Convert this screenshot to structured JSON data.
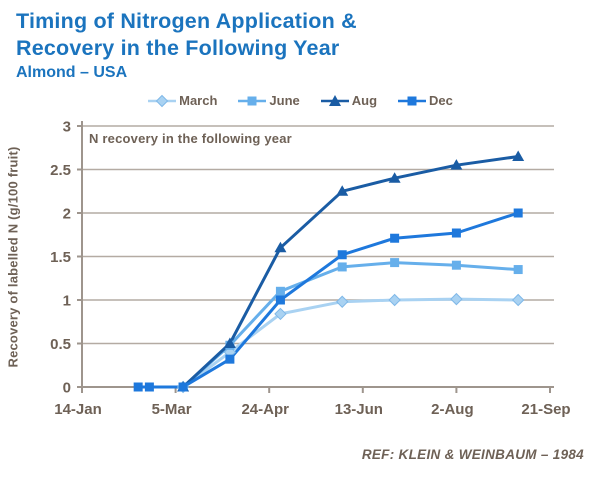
{
  "header": {
    "title_line1": "Timing of Nitrogen Application &",
    "title_line2": "Recovery in the Following Year",
    "subtitle": "Almond – USA"
  },
  "annotation": "N recovery in the following year",
  "reference": "REF:  KLEIN & WEINBAUM – 1984",
  "colors": {
    "title_blue": "#1B74BE",
    "text_brown": "#6E6156",
    "grid": "#B4ABA3",
    "axis": "#9E958D",
    "background": "#FFFFFF"
  },
  "chart_data": {
    "type": "line",
    "title": "Timing of Nitrogen Application & Recovery in the Following Year",
    "xlabel": "",
    "ylabel": "Recovery of labelled N (g/100 fruit)",
    "x_tick_labels": [
      "14-Jan",
      "5-Mar",
      "24-Apr",
      "13-Jun",
      "2-Aug",
      "21-Sep"
    ],
    "x_tick_days": [
      0,
      50,
      100,
      150,
      200,
      250
    ],
    "xlim_days": [
      0,
      250
    ],
    "ylim": [
      0,
      3
    ],
    "y_ticks": [
      0,
      0.5,
      1,
      1.5,
      2,
      2.5,
      3
    ],
    "grid": true,
    "legend_position": "top",
    "series": [
      {
        "name": "March",
        "color": "#A9D2F2",
        "marker": "diamond",
        "points": [
          [
            54,
            0
          ],
          [
            79,
            0.4
          ],
          [
            106,
            0.84
          ],
          [
            139,
            0.98
          ],
          [
            167,
            1.0
          ],
          [
            200,
            1.01
          ],
          [
            233,
            1.0
          ]
        ]
      },
      {
        "name": "June",
        "color": "#66AFEB",
        "marker": "square",
        "points": [
          [
            54,
            0
          ],
          [
            79,
            0.48
          ],
          [
            106,
            1.1
          ],
          [
            139,
            1.38
          ],
          [
            167,
            1.43
          ],
          [
            200,
            1.4
          ],
          [
            233,
            1.35
          ]
        ]
      },
      {
        "name": "Aug",
        "color": "#1A5CA4",
        "marker": "triangle",
        "points": [
          [
            54,
            0
          ],
          [
            79,
            0.5
          ],
          [
            106,
            1.6
          ],
          [
            139,
            2.25
          ],
          [
            167,
            2.4
          ],
          [
            200,
            2.55
          ],
          [
            233,
            2.65
          ]
        ]
      },
      {
        "name": "Dec",
        "color": "#1E78DC",
        "marker": "square",
        "points": [
          [
            30,
            0
          ],
          [
            36,
            0
          ],
          [
            54,
            0
          ],
          [
            79,
            0.32
          ],
          [
            106,
            1.0
          ],
          [
            139,
            1.52
          ],
          [
            167,
            1.71
          ],
          [
            200,
            1.77
          ],
          [
            233,
            2.0
          ]
        ]
      }
    ]
  }
}
